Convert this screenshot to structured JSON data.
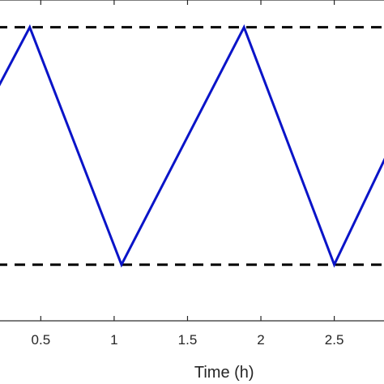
{
  "chart_data": {
    "type": "line",
    "title": "",
    "xlabel": "Time (h)",
    "ylabel": "",
    "xlim": [
      0.2,
      2.85
    ],
    "ylim": [
      0,
      1
    ],
    "grid": false,
    "x_ticks": [
      0.5,
      1,
      1.5,
      2,
      2.5
    ],
    "x_tick_labels": [
      "0.5",
      "1",
      "1.5",
      "2",
      "2.5"
    ],
    "series": [
      {
        "name": "",
        "color": "#0a14c8",
        "style": "solid",
        "x": [
          0.2,
          0.425,
          1.05,
          1.885,
          2.5,
          2.85
        ],
        "y": [
          0.72,
          0.915,
          0.175,
          0.915,
          0.175,
          0.51
        ]
      }
    ],
    "reference_lines": [
      {
        "y": 0.915,
        "style": "dashed",
        "color": "#000000"
      },
      {
        "y": 0.175,
        "style": "dashed",
        "color": "#000000"
      }
    ]
  }
}
